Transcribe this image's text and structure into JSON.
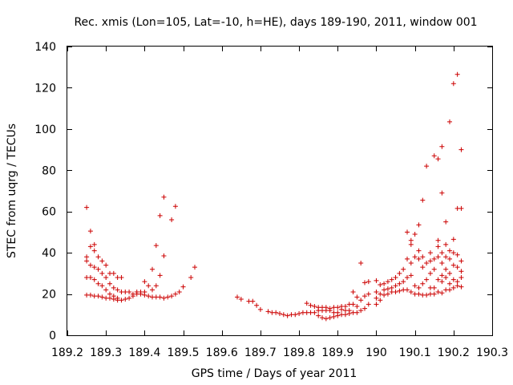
{
  "chart_data": {
    "type": "scatter",
    "title": "Rec. xmis (Lon=105, Lat=-10, h=HE), days 189-190, 2011, window 001",
    "xlabel": "GPS time / Days of year 2011",
    "ylabel": "STEC from uqrg / TECUs",
    "xlim": [
      189.2,
      190.3
    ],
    "ylim": [
      0,
      140
    ],
    "x_ticks": [
      189.2,
      189.3,
      189.4,
      189.5,
      189.6,
      189.7,
      189.8,
      189.9,
      190.0,
      190.1,
      190.2,
      190.3
    ],
    "x_tick_labels": [
      "189.2",
      "189.3",
      "189.4",
      "189.5",
      "189.6",
      "189.7",
      "189.8",
      "189.9",
      "190",
      "190.1",
      "190.2",
      "190.3"
    ],
    "y_ticks": [
      0,
      20,
      40,
      60,
      80,
      100,
      120,
      140
    ],
    "y_tick_labels": [
      "0",
      "20",
      "40",
      "60",
      "80",
      "100",
      "120",
      "140"
    ],
    "marker": "+",
    "grid": false,
    "colors": {
      "marker": "#cc0000",
      "axis": "#000000"
    },
    "series": [
      {
        "name": "STEC",
        "points": [
          [
            189.25,
            62
          ],
          [
            189.25,
            38
          ],
          [
            189.25,
            36
          ],
          [
            189.25,
            28
          ],
          [
            189.25,
            19.5
          ],
          [
            189.26,
            50.5
          ],
          [
            189.26,
            43
          ],
          [
            189.26,
            34
          ],
          [
            189.26,
            28
          ],
          [
            189.26,
            19.5
          ],
          [
            189.27,
            44
          ],
          [
            189.27,
            41
          ],
          [
            189.27,
            33
          ],
          [
            189.27,
            27
          ],
          [
            189.27,
            19
          ],
          [
            189.28,
            38
          ],
          [
            189.28,
            32
          ],
          [
            189.28,
            25
          ],
          [
            189.28,
            19
          ],
          [
            189.29,
            36
          ],
          [
            189.29,
            30
          ],
          [
            189.29,
            24
          ],
          [
            189.29,
            18.5
          ],
          [
            189.3,
            34
          ],
          [
            189.3,
            28
          ],
          [
            189.3,
            22
          ],
          [
            189.3,
            18
          ],
          [
            189.31,
            30
          ],
          [
            189.31,
            25
          ],
          [
            189.31,
            20
          ],
          [
            189.31,
            18
          ],
          [
            189.32,
            30
          ],
          [
            189.32,
            23
          ],
          [
            189.32,
            19
          ],
          [
            189.32,
            17.5
          ],
          [
            189.33,
            28
          ],
          [
            189.33,
            22
          ],
          [
            189.33,
            18
          ],
          [
            189.33,
            17
          ],
          [
            189.34,
            28
          ],
          [
            189.34,
            21
          ],
          [
            189.34,
            17
          ],
          [
            189.35,
            21
          ],
          [
            189.35,
            17.5
          ],
          [
            189.36,
            21
          ],
          [
            189.36,
            18
          ],
          [
            189.37,
            20
          ],
          [
            189.37,
            19
          ],
          [
            189.38,
            21
          ],
          [
            189.38,
            20
          ],
          [
            189.39,
            21
          ],
          [
            189.39,
            20
          ],
          [
            189.4,
            26
          ],
          [
            189.4,
            21
          ],
          [
            189.4,
            19.5
          ],
          [
            189.41,
            24
          ],
          [
            189.41,
            19
          ],
          [
            189.42,
            32
          ],
          [
            189.42,
            22
          ],
          [
            189.42,
            18.5
          ],
          [
            189.43,
            43.5
          ],
          [
            189.43,
            24
          ],
          [
            189.43,
            18.5
          ],
          [
            189.44,
            58
          ],
          [
            189.44,
            29
          ],
          [
            189.44,
            18.5
          ],
          [
            189.45,
            67
          ],
          [
            189.45,
            38.5
          ],
          [
            189.45,
            18
          ],
          [
            189.46,
            18.5
          ],
          [
            189.47,
            56
          ],
          [
            189.47,
            19
          ],
          [
            189.48,
            62.5
          ],
          [
            189.48,
            20
          ],
          [
            189.49,
            21
          ],
          [
            189.5,
            23.5
          ],
          [
            189.52,
            28
          ],
          [
            189.53,
            33
          ],
          [
            189.64,
            18.5
          ],
          [
            189.65,
            17.5
          ],
          [
            189.67,
            16.5
          ],
          [
            189.68,
            16.5
          ],
          [
            189.69,
            14.5
          ],
          [
            189.7,
            12.5
          ],
          [
            189.72,
            11.5
          ],
          [
            189.73,
            11
          ],
          [
            189.74,
            11
          ],
          [
            189.75,
            10.5
          ],
          [
            189.76,
            10
          ],
          [
            189.77,
            9.5
          ],
          [
            189.78,
            10
          ],
          [
            189.79,
            10
          ],
          [
            189.8,
            10.5
          ],
          [
            189.81,
            11
          ],
          [
            189.82,
            11
          ],
          [
            189.82,
            15.5
          ],
          [
            189.83,
            11
          ],
          [
            189.83,
            14.5
          ],
          [
            189.84,
            11
          ],
          [
            189.84,
            14
          ],
          [
            189.85,
            9.5
          ],
          [
            189.85,
            12
          ],
          [
            189.85,
            13.5
          ],
          [
            189.86,
            8.5
          ],
          [
            189.86,
            12
          ],
          [
            189.86,
            13.5
          ],
          [
            189.87,
            8
          ],
          [
            189.87,
            12
          ],
          [
            189.87,
            13.5
          ],
          [
            189.88,
            8.5
          ],
          [
            189.88,
            12
          ],
          [
            189.88,
            13
          ],
          [
            189.89,
            9
          ],
          [
            189.89,
            11
          ],
          [
            189.89,
            13.5
          ],
          [
            189.9,
            9.5
          ],
          [
            189.9,
            11
          ],
          [
            189.9,
            13.5
          ],
          [
            189.91,
            10
          ],
          [
            189.91,
            12.5
          ],
          [
            189.91,
            14
          ],
          [
            189.92,
            10
          ],
          [
            189.92,
            12
          ],
          [
            189.92,
            14
          ],
          [
            189.93,
            10.5
          ],
          [
            189.93,
            12
          ],
          [
            189.93,
            15
          ],
          [
            189.94,
            11
          ],
          [
            189.94,
            15
          ],
          [
            189.94,
            21
          ],
          [
            189.95,
            11
          ],
          [
            189.95,
            14
          ],
          [
            189.95,
            18.5
          ],
          [
            189.96,
            12
          ],
          [
            189.96,
            17
          ],
          [
            189.96,
            35
          ],
          [
            189.97,
            13
          ],
          [
            189.97,
            19
          ],
          [
            189.97,
            25.5
          ],
          [
            189.98,
            15
          ],
          [
            189.98,
            20
          ],
          [
            189.98,
            26
          ],
          [
            190.0,
            15
          ],
          [
            190.0,
            18
          ],
          [
            190.0,
            21
          ],
          [
            190.0,
            26.5
          ],
          [
            190.01,
            17
          ],
          [
            190.01,
            20
          ],
          [
            190.01,
            24.5
          ],
          [
            190.02,
            19.5
          ],
          [
            190.02,
            22
          ],
          [
            190.02,
            25
          ],
          [
            190.03,
            20
          ],
          [
            190.03,
            22.5
          ],
          [
            190.03,
            26
          ],
          [
            190.04,
            21
          ],
          [
            190.04,
            23
          ],
          [
            190.04,
            27
          ],
          [
            190.05,
            21
          ],
          [
            190.05,
            24
          ],
          [
            190.05,
            28
          ],
          [
            190.06,
            21.5
          ],
          [
            190.06,
            25
          ],
          [
            190.06,
            30
          ],
          [
            190.07,
            22
          ],
          [
            190.07,
            26
          ],
          [
            190.07,
            32
          ],
          [
            190.08,
            22
          ],
          [
            190.08,
            28
          ],
          [
            190.08,
            37
          ],
          [
            190.08,
            50
          ],
          [
            190.09,
            21
          ],
          [
            190.09,
            29
          ],
          [
            190.09,
            35
          ],
          [
            190.09,
            44
          ],
          [
            190.09,
            46
          ],
          [
            190.1,
            20
          ],
          [
            190.1,
            24
          ],
          [
            190.1,
            38
          ],
          [
            190.1,
            49
          ],
          [
            190.11,
            20
          ],
          [
            190.11,
            23
          ],
          [
            190.11,
            37
          ],
          [
            190.11,
            41
          ],
          [
            190.11,
            53.5
          ],
          [
            190.12,
            19.5
          ],
          [
            190.12,
            25
          ],
          [
            190.12,
            33
          ],
          [
            190.12,
            38
          ],
          [
            190.12,
            65.5
          ],
          [
            190.13,
            19.5
          ],
          [
            190.13,
            27
          ],
          [
            190.13,
            35
          ],
          [
            190.13,
            82
          ],
          [
            190.14,
            20
          ],
          [
            190.14,
            23
          ],
          [
            190.14,
            30
          ],
          [
            190.14,
            36
          ],
          [
            190.14,
            40
          ],
          [
            190.15,
            20
          ],
          [
            190.15,
            23
          ],
          [
            190.15,
            32
          ],
          [
            190.15,
            37
          ],
          [
            190.15,
            87
          ],
          [
            190.16,
            21
          ],
          [
            190.16,
            27
          ],
          [
            190.16,
            38
          ],
          [
            190.16,
            43
          ],
          [
            190.16,
            46
          ],
          [
            190.16,
            85.5
          ],
          [
            190.17,
            20.5
          ],
          [
            190.17,
            26
          ],
          [
            190.17,
            29
          ],
          [
            190.17,
            35
          ],
          [
            190.17,
            40
          ],
          [
            190.17,
            69
          ],
          [
            190.17,
            91.5
          ],
          [
            190.18,
            22
          ],
          [
            190.18,
            28
          ],
          [
            190.18,
            32
          ],
          [
            190.18,
            38
          ],
          [
            190.18,
            44
          ],
          [
            190.18,
            55
          ],
          [
            190.19,
            22
          ],
          [
            190.19,
            25
          ],
          [
            190.19,
            30
          ],
          [
            190.19,
            37
          ],
          [
            190.19,
            41
          ],
          [
            190.19,
            103.5
          ],
          [
            190.2,
            23
          ],
          [
            190.2,
            27
          ],
          [
            190.2,
            34
          ],
          [
            190.2,
            40
          ],
          [
            190.2,
            46.5
          ],
          [
            190.2,
            122
          ],
          [
            190.21,
            24
          ],
          [
            190.21,
            26
          ],
          [
            190.21,
            33
          ],
          [
            190.21,
            39
          ],
          [
            190.21,
            61.5
          ],
          [
            190.21,
            126.5
          ],
          [
            190.22,
            23.5
          ],
          [
            190.22,
            28
          ],
          [
            190.22,
            31
          ],
          [
            190.22,
            36
          ],
          [
            190.22,
            61.5
          ],
          [
            190.22,
            90
          ]
        ]
      }
    ]
  }
}
